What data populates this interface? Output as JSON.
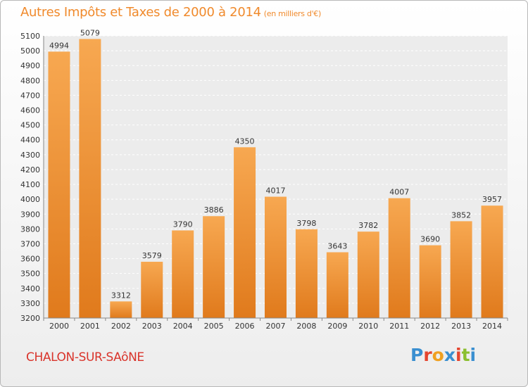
{
  "title": "Autres Impôts et Taxes de 2000 à 2014",
  "subtitle": "(en milliers d'€)",
  "footer_city": "CHALON-SUR-SAôNE",
  "logo_text": "Proxiti",
  "colors": {
    "title": "#f08a2c",
    "bar_top": "#f7a851",
    "bar_bottom": "#e07a1c",
    "city": "#d9342b",
    "logo": [
      "#3a8fd0",
      "#e4452f",
      "#f0a020",
      "#3a8fd0",
      "#e4452f",
      "#8bbf2f",
      "#3a8fd0"
    ]
  },
  "chart_data": {
    "type": "bar",
    "title": "Autres Impôts et Taxes de 2000 à 2014",
    "subtitle": "(en milliers d'€)",
    "categories": [
      "2000",
      "2001",
      "2002",
      "2003",
      "2004",
      "2005",
      "2006",
      "2007",
      "2008",
      "2009",
      "2010",
      "2011",
      "2012",
      "2013",
      "2014"
    ],
    "values": [
      4994,
      5079,
      3312,
      3579,
      3790,
      3886,
      4350,
      4017,
      3798,
      3643,
      3782,
      4007,
      3690,
      3852,
      3957
    ],
    "ylim": [
      3200,
      5100
    ],
    "yticks": [
      3200,
      3300,
      3400,
      3500,
      3600,
      3700,
      3800,
      3900,
      4000,
      4100,
      4200,
      4300,
      4400,
      4500,
      4600,
      4700,
      4800,
      4900,
      5000,
      5100
    ],
    "grid": true,
    "xlabel": "",
    "ylabel": ""
  }
}
